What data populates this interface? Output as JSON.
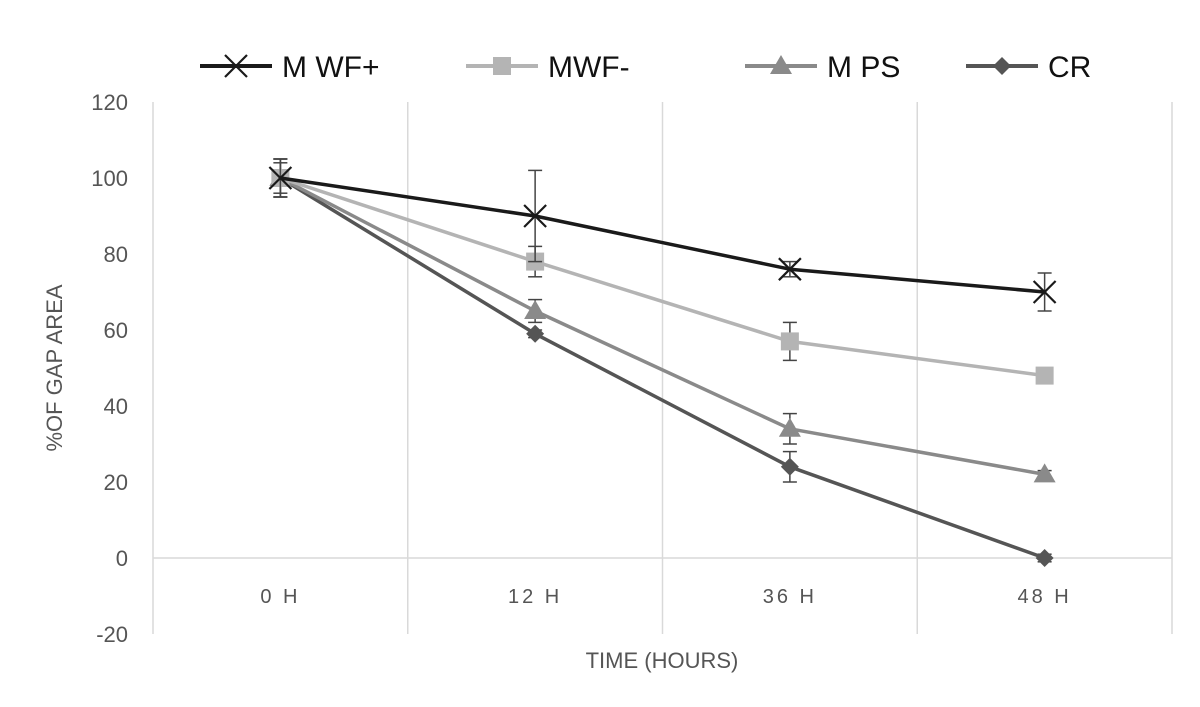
{
  "chart_data": {
    "type": "line",
    "title": "",
    "xlabel": "TIME (HOURS)",
    "ylabel": "%OF GAP AREA",
    "categories": [
      "0 H",
      "12 H",
      "36 H",
      "48 H"
    ],
    "ylim": [
      -20,
      120
    ],
    "yticks": [
      "120",
      "100",
      "80",
      "60",
      "40",
      "20",
      "0",
      "-20"
    ],
    "ytick_values": [
      120,
      100,
      80,
      60,
      40,
      20,
      0,
      -20
    ],
    "grid": "vertical",
    "legend_position": "top",
    "series": [
      {
        "name": "M WF+",
        "values": [
          100,
          90,
          76,
          70
        ],
        "errors": [
          5,
          12,
          2,
          5
        ],
        "marker": "x",
        "color": "#1a1a1a"
      },
      {
        "name": "MWF-",
        "values": [
          100,
          78,
          57,
          48
        ],
        "errors": [
          5,
          4,
          5,
          2
        ],
        "marker": "square",
        "color": "#b4b4b4"
      },
      {
        "name": "M PS",
        "values": [
          100,
          65,
          34,
          22
        ],
        "errors": [
          5,
          3,
          4,
          1
        ],
        "marker": "triangle",
        "color": "#8a8a8a"
      },
      {
        "name": "CR",
        "values": [
          100,
          59,
          24,
          0
        ],
        "errors": [
          4,
          1,
          4,
          1
        ],
        "marker": "diamond",
        "color": "#555555"
      }
    ]
  }
}
